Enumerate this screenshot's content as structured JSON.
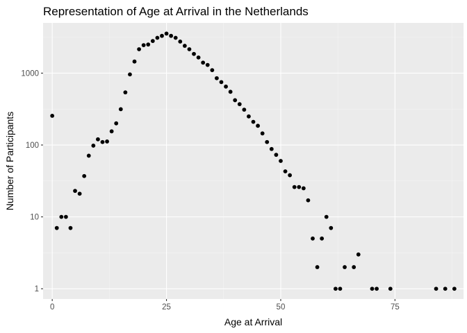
{
  "chart_data": {
    "type": "scatter",
    "title": "Representation of Age at Arrival in the Netherlands",
    "xlabel": "Age at Arrival",
    "ylabel": "Number of Participants",
    "xlim": [
      -2,
      90
    ],
    "ylim": [
      0.72,
      5000
    ],
    "y_scale": "log10",
    "grid": true,
    "x_ticks": [
      0,
      25,
      50,
      75
    ],
    "x_tick_labels": [
      "0",
      "25",
      "50",
      "75"
    ],
    "y_ticks": [
      1,
      10,
      100,
      1000
    ],
    "y_tick_labels": [
      "1",
      "10",
      "100",
      "1000"
    ],
    "points": [
      {
        "x": 0,
        "y": 255
      },
      {
        "x": 1,
        "y": 7
      },
      {
        "x": 2,
        "y": 10
      },
      {
        "x": 3,
        "y": 10
      },
      {
        "x": 4,
        "y": 7
      },
      {
        "x": 5,
        "y": 23
      },
      {
        "x": 6,
        "y": 21
      },
      {
        "x": 7,
        "y": 37
      },
      {
        "x": 8,
        "y": 71
      },
      {
        "x": 9,
        "y": 98
      },
      {
        "x": 10,
        "y": 120
      },
      {
        "x": 11,
        "y": 110
      },
      {
        "x": 12,
        "y": 112
      },
      {
        "x": 13,
        "y": 155
      },
      {
        "x": 14,
        "y": 200
      },
      {
        "x": 15,
        "y": 315
      },
      {
        "x": 16,
        "y": 540
      },
      {
        "x": 17,
        "y": 960
      },
      {
        "x": 18,
        "y": 1450
      },
      {
        "x": 19,
        "y": 2150
      },
      {
        "x": 20,
        "y": 2450
      },
      {
        "x": 21,
        "y": 2500
      },
      {
        "x": 22,
        "y": 2800
      },
      {
        "x": 23,
        "y": 3100
      },
      {
        "x": 24,
        "y": 3300
      },
      {
        "x": 25,
        "y": 3550
      },
      {
        "x": 26,
        "y": 3300
      },
      {
        "x": 27,
        "y": 3100
      },
      {
        "x": 28,
        "y": 2750
      },
      {
        "x": 29,
        "y": 2400
      },
      {
        "x": 30,
        "y": 2150
      },
      {
        "x": 31,
        "y": 1850
      },
      {
        "x": 32,
        "y": 1650
      },
      {
        "x": 33,
        "y": 1400
      },
      {
        "x": 34,
        "y": 1300
      },
      {
        "x": 35,
        "y": 1100
      },
      {
        "x": 36,
        "y": 850
      },
      {
        "x": 37,
        "y": 750
      },
      {
        "x": 38,
        "y": 650
      },
      {
        "x": 39,
        "y": 550
      },
      {
        "x": 40,
        "y": 420
      },
      {
        "x": 41,
        "y": 370
      },
      {
        "x": 42,
        "y": 310
      },
      {
        "x": 43,
        "y": 250
      },
      {
        "x": 44,
        "y": 210
      },
      {
        "x": 45,
        "y": 185
      },
      {
        "x": 46,
        "y": 145
      },
      {
        "x": 47,
        "y": 110
      },
      {
        "x": 48,
        "y": 88
      },
      {
        "x": 49,
        "y": 73
      },
      {
        "x": 50,
        "y": 60
      },
      {
        "x": 51,
        "y": 43
      },
      {
        "x": 52,
        "y": 38
      },
      {
        "x": 53,
        "y": 26
      },
      {
        "x": 54,
        "y": 26
      },
      {
        "x": 55,
        "y": 25
      },
      {
        "x": 56,
        "y": 17
      },
      {
        "x": 57,
        "y": 5
      },
      {
        "x": 58,
        "y": 2
      },
      {
        "x": 59,
        "y": 5
      },
      {
        "x": 60,
        "y": 10
      },
      {
        "x": 61,
        "y": 7
      },
      {
        "x": 62,
        "y": 1
      },
      {
        "x": 63,
        "y": 1
      },
      {
        "x": 64,
        "y": 2
      },
      {
        "x": 66,
        "y": 2
      },
      {
        "x": 67,
        "y": 3
      },
      {
        "x": 70,
        "y": 1
      },
      {
        "x": 71,
        "y": 1
      },
      {
        "x": 74,
        "y": 1
      },
      {
        "x": 84,
        "y": 1
      },
      {
        "x": 86,
        "y": 1
      },
      {
        "x": 88,
        "y": 1
      }
    ]
  }
}
